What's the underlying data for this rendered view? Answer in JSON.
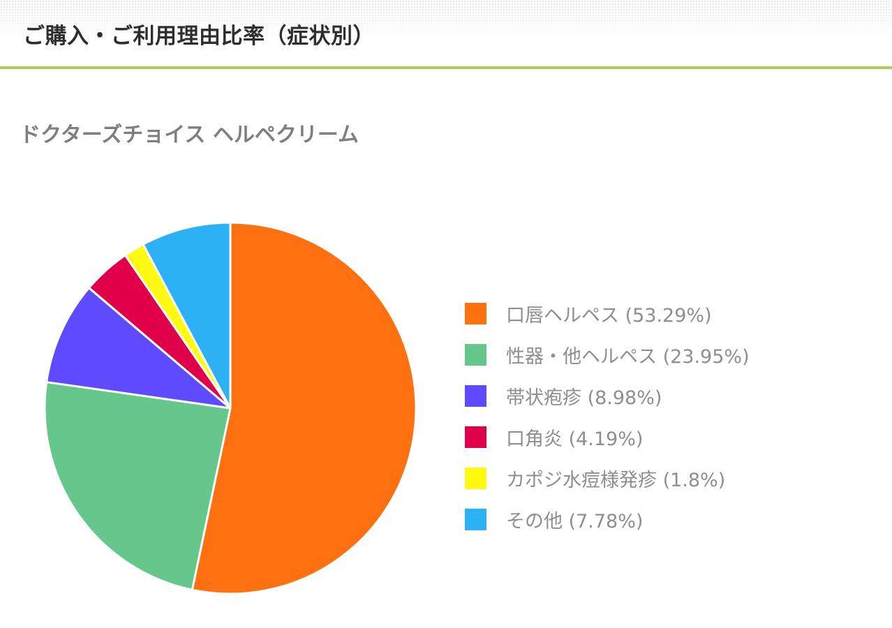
{
  "page": {
    "title": "ご購入・ご利用理由比率（症状別）",
    "subtitle": "ドクターズチョイス ヘルペクリーム",
    "accent_color": "#a9cf5b"
  },
  "legend": {
    "items": [
      {
        "label": "口唇ヘルペス (53.29%)",
        "color": "#ff7010"
      },
      {
        "label": "性器・他ヘルペス (23.95%)",
        "color": "#66c78b"
      },
      {
        "label": "帯状疱疹 (8.98%)",
        "color": "#5f4bff"
      },
      {
        "label": "口角炎 (4.19%)",
        "color": "#e0004a"
      },
      {
        "label": "カポジ水痘様発疹 (1.8%)",
        "color": "#fffa10"
      },
      {
        "label": "その他 (7.78%)",
        "color": "#2db1f5"
      }
    ]
  },
  "chart_data": {
    "type": "pie",
    "title": "ご購入・ご利用理由比率（症状別）",
    "subtitle": "ドクターズチョイス ヘルペクリーム",
    "categories": [
      "口唇ヘルペス",
      "性器・他ヘルペス",
      "帯状疱疹",
      "口角炎",
      "カポジ水痘様発疹",
      "その他"
    ],
    "values": [
      53.29,
      23.95,
      8.98,
      4.19,
      1.8,
      7.78
    ],
    "unit": "%",
    "colors": [
      "#ff7010",
      "#66c78b",
      "#5f4bff",
      "#e0004a",
      "#fffa10",
      "#2db1f5"
    ],
    "start_angle": "12 o'clock",
    "direction": "clockwise",
    "legend_position": "right"
  }
}
